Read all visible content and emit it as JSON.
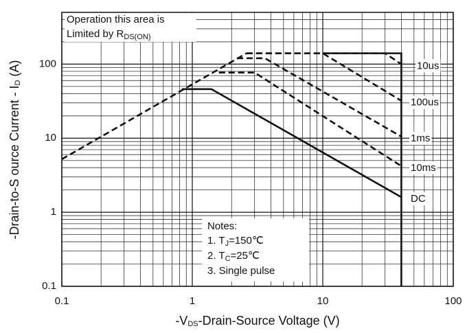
{
  "chart_data": {
    "type": "line",
    "xlabel": {
      "pre": "-V",
      "sub": "DS",
      "post": "-Drain-Source Voltage (V)"
    },
    "ylabel": {
      "pre": "-Drain-to-S ource Current - I",
      "sub": "D",
      "post": " (A)"
    },
    "annotation": {
      "line1": "Operation this area is",
      "line2": "Limited  by R",
      "sub": "DS(ON)"
    },
    "notes": {
      "title": "Notes:",
      "n1": {
        "pre": "1. T",
        "sub": "J",
        "post": "=150℃"
      },
      "n2": {
        "pre": "2. T",
        "sub": "C",
        "post": "=25℃"
      },
      "n3": "3. Single pulse"
    },
    "log_x": true,
    "log_y": true,
    "grid": true,
    "minor_grid": true,
    "xlim": [
      0.1,
      100
    ],
    "ylim": [
      0.1,
      500
    ],
    "xticks": [
      0.1,
      1,
      10,
      100
    ],
    "yticks": [
      0.1,
      1,
      10,
      100
    ],
    "series": [
      {
        "color": "#111",
        "dash": true,
        "x": [
          0.1,
          2.6
        ],
        "values": [
          5.2,
          140
        ]
      },
      {
        "color": "#111",
        "dash": false,
        "x": [
          10,
          40,
          40
        ],
        "values": [
          140,
          140,
          0.1
        ]
      },
      {
        "name": "10us",
        "color": "#111",
        "dash": true,
        "x": [
          2.6,
          30,
          40
        ],
        "values": [
          140,
          140,
          100
        ]
      },
      {
        "name": "100us",
        "color": "#111",
        "dash": true,
        "x": [
          2.6,
          10,
          40
        ],
        "values": [
          140,
          140,
          32
        ]
      },
      {
        "name": "1ms",
        "color": "#111",
        "dash": true,
        "x": [
          2.2,
          3.6,
          40
        ],
        "values": [
          120,
          120,
          10.5
        ]
      },
      {
        "name": "10ms",
        "color": "#111",
        "dash": true,
        "x": [
          1.6,
          3.0,
          40
        ],
        "values": [
          77,
          77,
          4.2
        ]
      },
      {
        "name": "DC",
        "color": "#111",
        "dash": false,
        "x": [
          0.83,
          1.4,
          40
        ],
        "values": [
          46,
          46,
          1.6
        ]
      }
    ]
  }
}
